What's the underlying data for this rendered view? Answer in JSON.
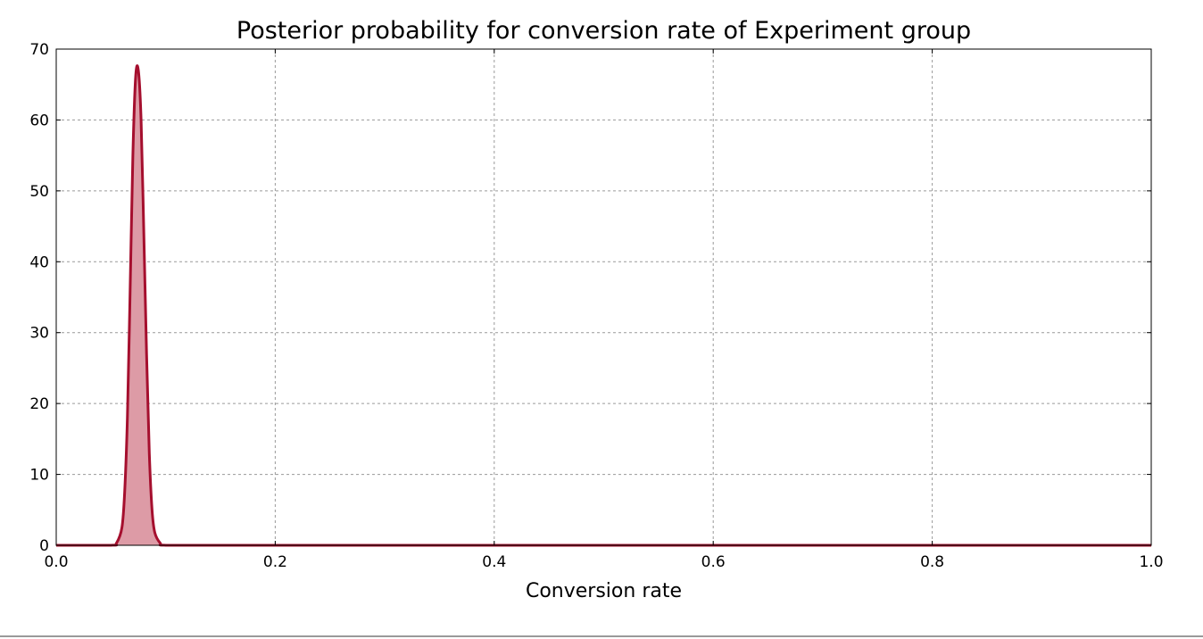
{
  "chart_data": {
    "type": "area",
    "title": "Posterior probability for conversion rate of Experiment group",
    "xlabel": "Conversion rate",
    "ylabel": "",
    "xlim": [
      0.0,
      1.0
    ],
    "ylim": [
      0,
      70
    ],
    "x_ticks": [
      "0.0",
      "0.2",
      "0.4",
      "0.6",
      "0.8",
      "1.0"
    ],
    "y_ticks": [
      "0",
      "10",
      "20",
      "30",
      "40",
      "50",
      "60",
      "70"
    ],
    "grid": true,
    "legend": "none",
    "series": [
      {
        "x": [
          0.0,
          0.05,
          0.055,
          0.06,
          0.0625,
          0.065,
          0.0675,
          0.07,
          0.0725,
          0.075,
          0.0775,
          0.08,
          0.0825,
          0.085,
          0.0875,
          0.09,
          0.095,
          0.1,
          0.15,
          0.2,
          0.4,
          0.6,
          0.8,
          1.0
        ],
        "y": [
          0,
          0,
          0.3,
          2.5,
          7.5,
          18,
          36,
          55,
          66,
          67,
          60,
          44,
          27,
          13,
          5,
          1.8,
          0.3,
          0,
          0,
          0,
          0,
          0,
          0,
          0
        ]
      }
    ],
    "colors": {
      "line": "#a50f2e",
      "fill": "#dd9ba6",
      "grid": "#9a9a9a",
      "axes": "#000000"
    }
  }
}
